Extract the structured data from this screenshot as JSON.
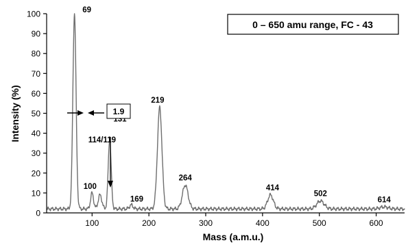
{
  "chart_data": {
    "type": "line",
    "title": "0 – 650 amu range, FC - 43",
    "xlabel": "Mass (a.m.u.)",
    "ylabel": "Intensity (%)",
    "xlim": [
      20,
      650
    ],
    "ylim": [
      0,
      100
    ],
    "xticks": [
      "100",
      "200",
      "300",
      "400",
      "500",
      "600"
    ],
    "yticks": [
      "0",
      "10",
      "20",
      "30",
      "40",
      "50",
      "60",
      "70",
      "80",
      "90",
      "100"
    ],
    "grid": false,
    "baseline": 2,
    "peaks": [
      {
        "mass": 69,
        "intensity": 100,
        "label": "69"
      },
      {
        "mass": 100,
        "intensity": 10,
        "label": "100"
      },
      {
        "mass": 114,
        "intensity": 9,
        "label": "114/119"
      },
      {
        "mass": 131,
        "intensity": 37,
        "label": "131"
      },
      {
        "mass": 169,
        "intensity": 4,
        "label": "169"
      },
      {
        "mass": 219,
        "intensity": 53,
        "label": "219"
      },
      {
        "mass": 264,
        "intensity": 14,
        "label": "264"
      },
      {
        "mass": 414,
        "intensity": 9,
        "label": "414"
      },
      {
        "mass": 502,
        "intensity": 6,
        "label": "502"
      },
      {
        "mass": 614,
        "intensity": 3,
        "label": "614"
      }
    ],
    "peak_width_annotation": {
      "label": "1.9",
      "at_mass": 69,
      "at_intensity": 50
    },
    "arrow_annotation": {
      "target_mass": 114,
      "target_intensity": 8
    }
  }
}
